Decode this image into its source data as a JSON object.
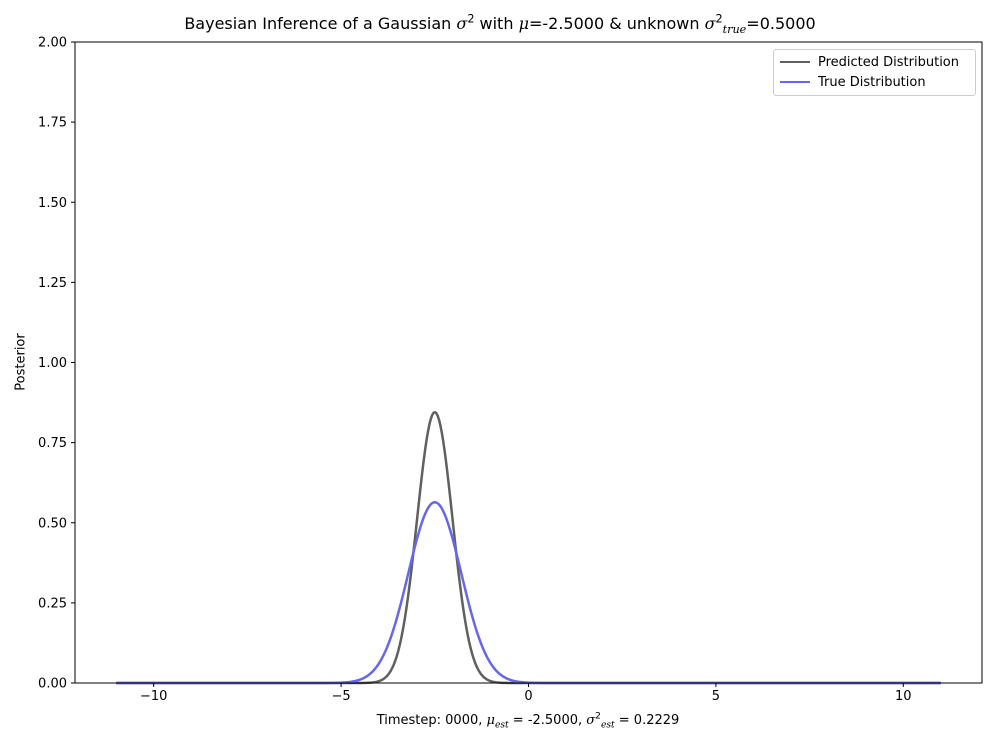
{
  "chart_data": {
    "type": "line",
    "title": "Bayesian Inference of a Gaussian σ² with μ=-2.5000 & unknown σ²true=0.5000",
    "title_parts": {
      "prefix": "Bayesian Inference of a Gaussian ",
      "sigma": "σ",
      "sq": "2",
      "with": " with ",
      "mu": "μ",
      "mu_val": "=-2.5000 & unknown ",
      "sub_true": "true",
      "true_val": "=0.5000"
    },
    "xlabel": "Timestep: 0000, μest = -2.5000, σ²est = 0.2229",
    "xlabel_parts": {
      "prefix": "Timestep: 0000, ",
      "mu": "μ",
      "sub_est": "est",
      "mu_val": " = -2.5000, ",
      "sigma": "σ",
      "sq": "2",
      "sigma_val": " = 0.2229"
    },
    "ylabel": "Posterior",
    "xlim": [
      -12.1,
      12.1
    ],
    "ylim": [
      0,
      2.0
    ],
    "x_ticks": [
      -10,
      -5,
      0,
      5,
      10
    ],
    "x_tick_labels": [
      "−10",
      "−5",
      "0",
      "5",
      "10"
    ],
    "y_ticks": [
      0,
      0.25,
      0.5,
      0.75,
      1.0,
      1.25,
      1.5,
      1.75,
      2.0
    ],
    "y_tick_labels": [
      "0.00",
      "0.25",
      "0.50",
      "0.75",
      "1.00",
      "1.25",
      "1.50",
      "1.75",
      "2.00"
    ],
    "x_range": [
      -11,
      11
    ],
    "grid": false,
    "legend_position": "top-right",
    "series": [
      {
        "name": "Predicted Distribution",
        "color": "#606060",
        "mean": -2.5,
        "variance": 0.2229,
        "peak": 0.845
      },
      {
        "name": "True Distribution",
        "color": "#6666ee",
        "mean": -2.5,
        "variance": 0.5,
        "peak": 0.564
      }
    ]
  }
}
